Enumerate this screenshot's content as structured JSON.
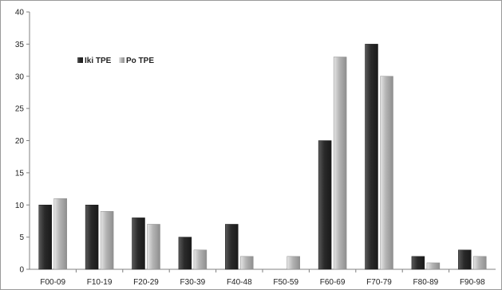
{
  "chart_data": {
    "type": "bar",
    "categories": [
      "F00-09",
      "F10-19",
      "F20-29",
      "F30-39",
      "F40-48",
      "F50-59",
      "F60-69",
      "F70-79",
      "F80-89",
      "F90-98"
    ],
    "series": [
      {
        "name": "Iki TPE",
        "values": [
          10,
          10,
          8,
          5,
          7,
          0,
          20,
          35,
          2,
          3
        ],
        "color": "#3a3a3a"
      },
      {
        "name": "Po TPE",
        "values": [
          11,
          9,
          7,
          3,
          2,
          2,
          33,
          30,
          1,
          2
        ],
        "color": "#b8b8b8"
      }
    ],
    "ylim": [
      0,
      40
    ],
    "yticks": [
      0,
      5,
      10,
      15,
      20,
      25,
      30,
      35,
      40
    ],
    "grid": false,
    "legend_position": "top-left",
    "title": "",
    "xlabel": "",
    "ylabel": ""
  }
}
